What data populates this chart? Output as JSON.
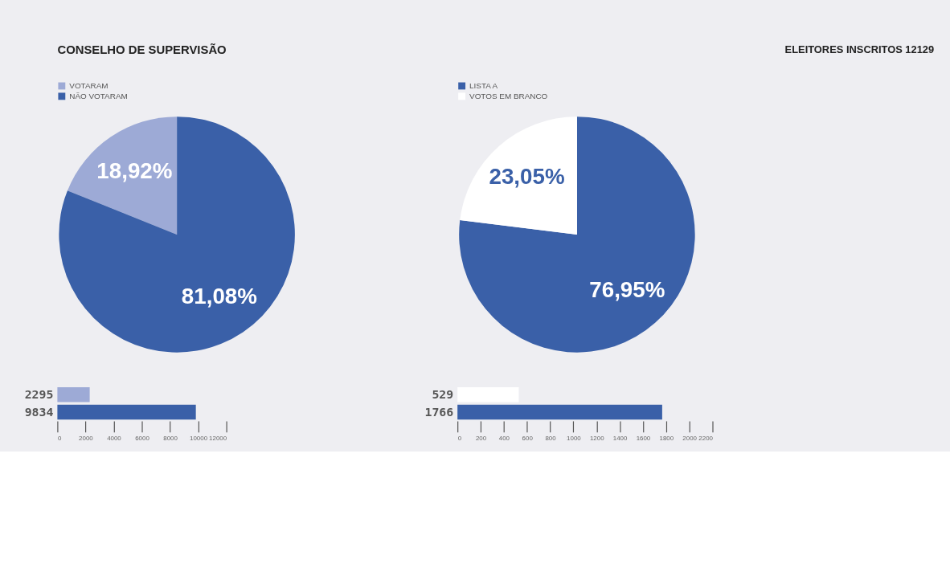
{
  "chart_data": [
    {
      "type": "pie",
      "title": "CONSELHO DE SUPERVISÃO",
      "annotations": [
        "ELEITORES INSCRITOS 12129"
      ],
      "categories": [
        "VOTARAM",
        "NÃO VOTARAM"
      ],
      "values": [
        18.92,
        81.08
      ],
      "colors": [
        "#9daad6",
        "#3a60a8"
      ],
      "value_labels": [
        "18,92%",
        "81,08%"
      ],
      "legend": "top"
    },
    {
      "type": "pie",
      "categories": [
        "LISTA A",
        "VOTOS EM BRANCO"
      ],
      "values": [
        76.95,
        23.05
      ],
      "colors": [
        "#3a60a8",
        "#ffffff"
      ],
      "value_labels": [
        "76,95%",
        "23,05%"
      ],
      "legend": "top"
    },
    {
      "type": "bar",
      "orientation": "horizontal",
      "categories": [
        null,
        null
      ],
      "values": [
        2295,
        9834
      ],
      "colors": [
        "#9daad6",
        "#3a60a8"
      ],
      "xlim": [
        0,
        12000
      ],
      "xticks": [
        0,
        2000,
        4000,
        6000,
        8000,
        10000,
        12000
      ],
      "data_labels": true,
      "grid": false
    },
    {
      "type": "bar",
      "orientation": "horizontal",
      "categories": [
        null,
        null
      ],
      "values": [
        529,
        1766
      ],
      "colors": [
        "#ffffff",
        "#3a60a8"
      ],
      "xlim": [
        0,
        2200
      ],
      "xticks": [
        0,
        200,
        400,
        600,
        800,
        1000,
        1200,
        1400,
        1600,
        1800,
        2000,
        2200
      ],
      "data_labels": true,
      "grid": false
    }
  ]
}
